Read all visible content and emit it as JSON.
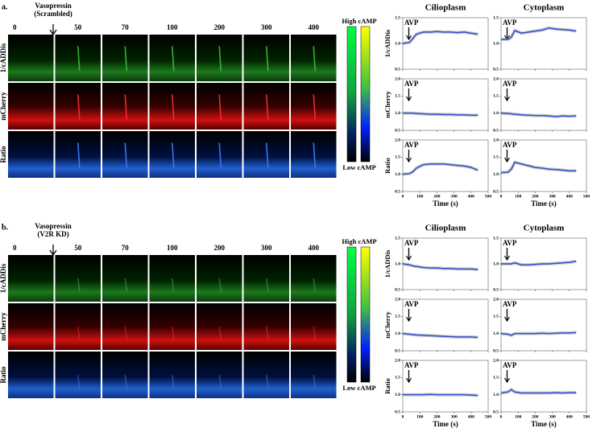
{
  "times": [
    "0",
    "50",
    "70",
    "100",
    "200",
    "300",
    "400"
  ],
  "row_labels": [
    "1/cADDis",
    "mCherry",
    "Ratio"
  ],
  "columns": [
    "Cilioplasm",
    "Cytoplasm"
  ],
  "colorbar": {
    "high": "High cAMP",
    "low": "Low cAMP"
  },
  "annotation": "AVP",
  "mean_color": "#2f4fd0",
  "xaxis": {
    "label": "Time (s)",
    "xlim": [
      0,
      500
    ],
    "xticks": [
      0,
      100,
      200,
      300,
      400,
      500
    ],
    "x": [
      0,
      40,
      60,
      80,
      120,
      160,
      200,
      240,
      280,
      320,
      360,
      400,
      440
    ]
  },
  "row_axes": [
    {
      "ylim": [
        0.5,
        1.5
      ],
      "yticks": [
        0.5,
        {
          "value": 1,
          "label": "1.0"
        },
        1.5
      ]
    },
    {
      "ylim": [
        0.5,
        2
      ],
      "yticks": [
        0.5,
        {
          "value": 1,
          "label": "1.0"
        },
        1.5,
        {
          "value": 2,
          "label": "2.0"
        }
      ]
    },
    {
      "ylim": [
        0.5,
        2
      ],
      "yticks": [
        0.5,
        {
          "value": 1,
          "label": "1.0"
        },
        1.5,
        {
          "value": 2,
          "label": "2.0"
        }
      ]
    }
  ],
  "panels": [
    {
      "label": "a.",
      "stimulus": [
        "Vasopressin",
        "(Scrambled)"
      ],
      "plots": [
        [
          [
            1.0,
            1.02,
            1.1,
            1.18,
            1.22,
            1.22,
            1.23,
            1.22,
            1.22,
            1.21,
            1.22,
            1.2,
            1.18
          ],
          [
            1.0,
            1.0,
            1.0,
            0.99,
            0.98,
            0.97,
            0.97,
            0.96,
            0.96,
            0.95,
            0.95,
            0.94,
            0.94
          ],
          [
            1.0,
            1.02,
            1.08,
            1.18,
            1.28,
            1.3,
            1.3,
            1.3,
            1.28,
            1.26,
            1.24,
            1.2,
            1.12
          ]
        ],
        [
          [
            1.08,
            1.08,
            1.12,
            1.25,
            1.2,
            1.22,
            1.24,
            1.26,
            1.3,
            1.28,
            1.27,
            1.26,
            1.24
          ],
          [
            1.0,
            0.99,
            0.98,
            0.97,
            0.95,
            0.94,
            0.93,
            0.93,
            0.92,
            0.9,
            0.92,
            0.91,
            0.92
          ],
          [
            1.05,
            1.06,
            1.15,
            1.35,
            1.3,
            1.25,
            1.2,
            1.18,
            1.15,
            1.14,
            1.12,
            1.1,
            1.1
          ]
        ]
      ]
    },
    {
      "label": "b.",
      "stimulus": [
        "Vasopressin",
        "(V2R KD)"
      ],
      "plots": [
        [
          [
            1.0,
            0.98,
            0.96,
            0.95,
            0.93,
            0.92,
            0.92,
            0.91,
            0.91,
            0.9,
            0.9,
            0.9,
            0.89
          ],
          [
            1.0,
            0.98,
            0.97,
            0.96,
            0.95,
            0.94,
            0.93,
            0.92,
            0.91,
            0.9,
            0.9,
            0.9,
            0.89
          ],
          [
            1.0,
            1.0,
            1.0,
            1.0,
            1.0,
            1.01,
            1.0,
            1.0,
            1.0,
            1.0,
            1.0,
            0.99,
            0.98
          ]
        ],
        [
          [
            1.0,
            1.0,
            1.0,
            1.02,
            0.98,
            0.98,
            0.99,
            1.0,
            1.0,
            1.01,
            1.02,
            1.03,
            1.05
          ],
          [
            1.0,
            0.98,
            0.95,
            1.0,
            1.0,
            1.0,
            1.0,
            1.01,
            1.0,
            1.01,
            1.02,
            1.02,
            1.03
          ],
          [
            1.05,
            1.08,
            1.15,
            1.08,
            1.05,
            1.05,
            1.05,
            1.05,
            1.05,
            1.06,
            1.05,
            1.06,
            1.06
          ]
        ]
      ]
    }
  ]
}
